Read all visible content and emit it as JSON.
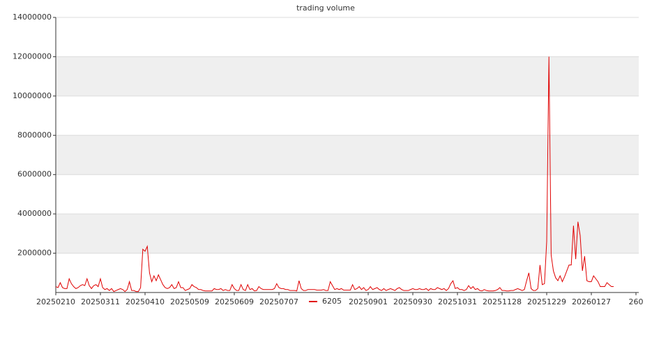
{
  "chart_data": {
    "type": "line",
    "title": "trading volume",
    "categories": [
      "20250210",
      null,
      null,
      null,
      null,
      null,
      null,
      null,
      null,
      null,
      null,
      null,
      null,
      null,
      null,
      null,
      null,
      null,
      null,
      null,
      "20250311",
      null,
      null,
      null,
      null,
      null,
      null,
      null,
      null,
      null,
      null,
      null,
      null,
      null,
      null,
      null,
      null,
      null,
      null,
      null,
      "20250410",
      null,
      null,
      null,
      null,
      null,
      null,
      null,
      null,
      null,
      null,
      null,
      null,
      null,
      null,
      null,
      null,
      null,
      null,
      null,
      "20250509",
      null,
      null,
      null,
      null,
      null,
      null,
      null,
      null,
      null,
      null,
      null,
      null,
      null,
      null,
      null,
      null,
      null,
      null,
      null,
      "20250609",
      null,
      null,
      null,
      null,
      null,
      null,
      null,
      null,
      null,
      null,
      null,
      null,
      null,
      null,
      null,
      null,
      null,
      null,
      null,
      "20250707",
      null,
      null,
      null,
      null,
      null,
      null,
      null,
      null,
      null,
      null,
      null,
      null,
      null,
      null,
      null,
      null,
      null,
      null,
      null,
      null,
      null,
      null,
      null,
      null,
      null,
      null,
      null,
      null,
      null,
      null,
      null,
      null,
      null,
      null,
      null,
      null,
      null,
      null,
      null,
      "20250901",
      null,
      null,
      null,
      null,
      null,
      null,
      null,
      null,
      null,
      null,
      null,
      null,
      null,
      null,
      null,
      null,
      null,
      null,
      null,
      "20250930",
      null,
      null,
      null,
      null,
      null,
      null,
      null,
      null,
      null,
      null,
      null,
      null,
      null,
      null,
      null,
      null,
      null,
      null,
      null,
      "20251031",
      null,
      null,
      null,
      null,
      null,
      null,
      null,
      null,
      null,
      null,
      null,
      null,
      null,
      null,
      null,
      null,
      null,
      null,
      null,
      "20251128",
      null,
      null,
      null,
      null,
      null,
      null,
      null,
      null,
      null,
      null,
      null,
      null,
      null,
      null,
      null,
      null,
      null,
      null,
      null,
      "20251229",
      null,
      null,
      null,
      null,
      null,
      null,
      null,
      null,
      null,
      null,
      null,
      null,
      null,
      null,
      null,
      null,
      null,
      null,
      null,
      "20260127",
      null,
      null,
      null,
      null,
      null,
      null,
      null,
      null,
      null,
      null,
      null,
      null,
      null,
      null,
      null,
      null,
      null,
      null,
      null,
      "260"
    ],
    "series": [
      {
        "name": "6205",
        "color": "#e00000",
        "values": [
          300000,
          250000,
          500000,
          250000,
          200000,
          200000,
          700000,
          450000,
          300000,
          200000,
          250000,
          350000,
          400000,
          350000,
          700000,
          350000,
          200000,
          350000,
          400000,
          300000,
          700000,
          250000,
          150000,
          200000,
          100000,
          200000,
          50000,
          100000,
          150000,
          200000,
          150000,
          50000,
          150000,
          550000,
          100000,
          100000,
          50000,
          50000,
          250000,
          2200000,
          2100000,
          2350000,
          1000000,
          550000,
          850000,
          600000,
          900000,
          650000,
          400000,
          250000,
          200000,
          250000,
          400000,
          200000,
          250000,
          550000,
          250000,
          250000,
          100000,
          150000,
          200000,
          400000,
          300000,
          250000,
          150000,
          150000,
          100000,
          80000,
          80000,
          80000,
          80000,
          200000,
          150000,
          150000,
          200000,
          100000,
          150000,
          100000,
          100000,
          400000,
          200000,
          100000,
          100000,
          400000,
          150000,
          100000,
          400000,
          150000,
          200000,
          80000,
          100000,
          300000,
          200000,
          150000,
          150000,
          150000,
          150000,
          150000,
          200000,
          450000,
          250000,
          200000,
          200000,
          150000,
          150000,
          100000,
          100000,
          100000,
          80000,
          600000,
          200000,
          100000,
          100000,
          150000,
          150000,
          150000,
          150000,
          120000,
          120000,
          120000,
          150000,
          100000,
          100000,
          550000,
          350000,
          150000,
          200000,
          150000,
          200000,
          120000,
          120000,
          120000,
          120000,
          400000,
          150000,
          200000,
          300000,
          150000,
          250000,
          100000,
          150000,
          300000,
          150000,
          200000,
          250000,
          150000,
          100000,
          200000,
          100000,
          150000,
          200000,
          150000,
          100000,
          200000,
          250000,
          150000,
          100000,
          100000,
          100000,
          150000,
          200000,
          150000,
          150000,
          200000,
          150000,
          150000,
          200000,
          100000,
          200000,
          150000,
          150000,
          250000,
          200000,
          150000,
          200000,
          100000,
          200000,
          450000,
          600000,
          200000,
          250000,
          150000,
          150000,
          100000,
          150000,
          350000,
          200000,
          300000,
          150000,
          200000,
          100000,
          80000,
          150000,
          100000,
          80000,
          80000,
          80000,
          100000,
          150000,
          250000,
          100000,
          100000,
          80000,
          80000,
          100000,
          100000,
          150000,
          200000,
          150000,
          100000,
          150000,
          600000,
          1000000,
          200000,
          100000,
          100000,
          200000,
          1400000,
          400000,
          450000,
          2600000,
          12000000,
          1900000,
          1100000,
          750000,
          600000,
          850000,
          550000,
          800000,
          1100000,
          1400000,
          1400000,
          3400000,
          1700000,
          3600000,
          2900000,
          1100000,
          1850000,
          600000,
          550000,
          550000,
          850000,
          700000,
          550000,
          300000,
          300000,
          300000,
          500000,
          400000,
          300000,
          300000,
          null,
          null,
          null,
          null,
          null,
          null,
          null,
          null,
          null,
          null
        ]
      }
    ],
    "ylim": [
      0,
      14000000
    ],
    "yticks": [
      2000000,
      4000000,
      6000000,
      8000000,
      10000000,
      12000000,
      14000000
    ],
    "grid": true
  }
}
